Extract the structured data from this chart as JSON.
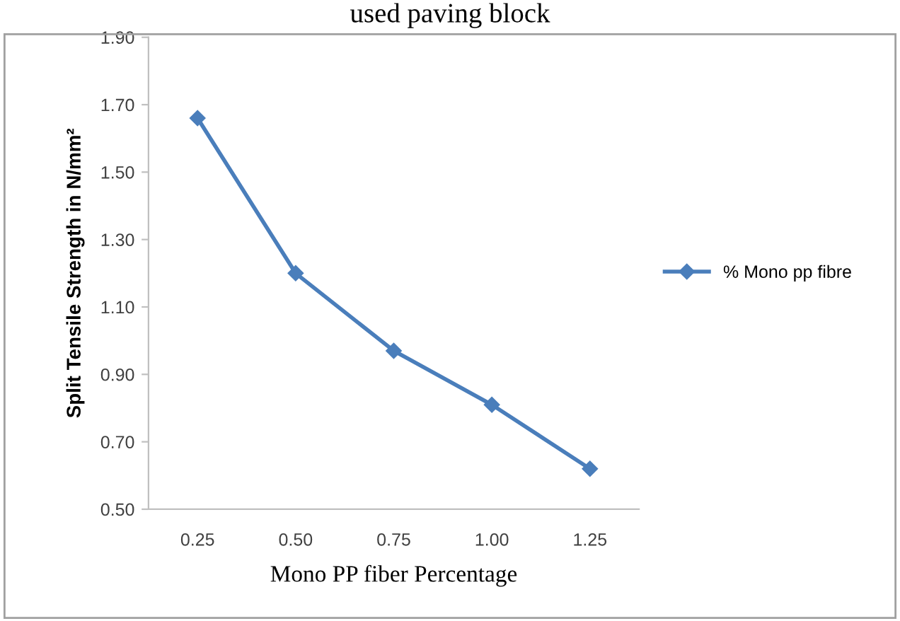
{
  "chart_data": {
    "type": "line",
    "title": "used paving block",
    "xlabel": "Mono PP fiber Percentage",
    "ylabel": "Split Tensile Strength in N/mm²",
    "categories": [
      "0.25",
      "0.50",
      "0.75",
      "1.00",
      "1.25"
    ],
    "series": [
      {
        "name": "% Mono pp fibre",
        "color": "#4a7ebb",
        "values": [
          1.66,
          1.2,
          0.97,
          0.81,
          0.62
        ]
      }
    ],
    "ylim": [
      0.5,
      1.9
    ],
    "yticks": [
      {
        "value": 0.5,
        "label": "0.50"
      },
      {
        "value": 0.7,
        "label": "0.70"
      },
      {
        "value": 0.9,
        "label": "0.90"
      },
      {
        "value": 1.1,
        "label": "1.10"
      },
      {
        "value": 1.3,
        "label": "1.30"
      },
      {
        "value": 1.5,
        "label": "1.50"
      },
      {
        "value": 1.7,
        "label": "1.70"
      },
      {
        "value": 1.9,
        "label": "1.90"
      }
    ],
    "grid": false,
    "legend": "right",
    "marker": "diamond",
    "line_style": "solid"
  }
}
